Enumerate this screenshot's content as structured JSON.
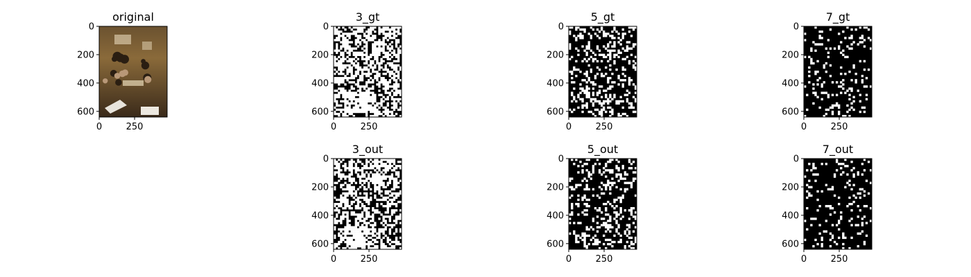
{
  "figure": {
    "background": "#ffffff",
    "panels": [
      {
        "title": "original",
        "kind": "photo",
        "x_ticks": [
          "0",
          "250"
        ],
        "y_ticks": [
          "0",
          "200",
          "400",
          "600"
        ]
      },
      {
        "title": "3_gt",
        "kind": "mask",
        "density": 0.55,
        "x_ticks": [
          "0",
          "250"
        ],
        "y_ticks": [
          "0",
          "200",
          "400",
          "600"
        ]
      },
      {
        "title": "5_gt",
        "kind": "mask",
        "density": 0.25,
        "x_ticks": [
          "0",
          "250"
        ],
        "y_ticks": [
          "0",
          "200",
          "400",
          "600"
        ]
      },
      {
        "title": "7_gt",
        "kind": "mask",
        "density": 0.12,
        "x_ticks": [
          "0",
          "250"
        ],
        "y_ticks": [
          "0",
          "200",
          "400",
          "600"
        ]
      },
      {
        "title": "3_out",
        "kind": "mask",
        "density": 0.5,
        "x_ticks": [
          "0",
          "250"
        ],
        "y_ticks": [
          "0",
          "200",
          "400",
          "600"
        ]
      },
      {
        "title": "5_out",
        "kind": "mask",
        "density": 0.22,
        "x_ticks": [
          "0",
          "250"
        ],
        "y_ticks": [
          "0",
          "200",
          "400",
          "600"
        ]
      },
      {
        "title": "7_out",
        "kind": "mask",
        "density": 0.1,
        "x_ticks": [
          "0",
          "250"
        ],
        "y_ticks": [
          "0",
          "200",
          "400",
          "600"
        ]
      }
    ]
  },
  "chart_data": {
    "type": "heatmap",
    "image_extent": {
      "x": [
        0,
        480
      ],
      "y": [
        0,
        640
      ]
    },
    "x_ticks": [
      0,
      250
    ],
    "y_ticks": [
      0,
      200,
      400,
      600
    ],
    "panels": [
      "original",
      "3_gt",
      "5_gt",
      "7_gt",
      "3_out",
      "5_out",
      "7_out"
    ],
    "colors": {
      "mask_on": "#ffffff",
      "mask_off": "#000000",
      "photo_dark": "#3a2a1a",
      "photo_warm": "#8a6a3a",
      "photo_light": "#d8c8a8"
    }
  }
}
